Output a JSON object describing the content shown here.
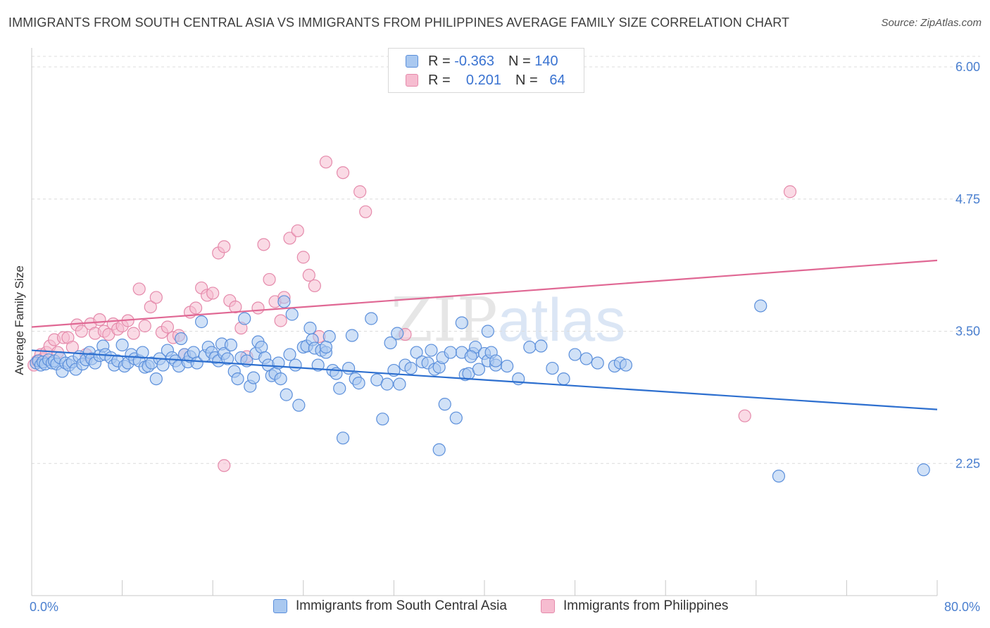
{
  "header": {
    "title": "IMMIGRANTS FROM SOUTH CENTRAL ASIA VS IMMIGRANTS FROM PHILIPPINES AVERAGE FAMILY SIZE CORRELATION CHART",
    "source": "Source: ZipAtlas.com"
  },
  "watermark": {
    "zip": "ZIP",
    "atlas": "atlas"
  },
  "legend": {
    "rows": [
      {
        "r_label": "R =",
        "r_value": "-0.363",
        "n_label": "N =",
        "n_value": "140"
      },
      {
        "r_label": "R =",
        "r_value": "0.201",
        "n_label": "N =",
        "n_value": "64"
      }
    ]
  },
  "colors": {
    "blue_fill": "#a9c8f0",
    "blue_stroke": "#5b8fdb",
    "blue_line": "#2d6fcf",
    "pink_fill": "#f6bcd0",
    "pink_stroke": "#e58aab",
    "pink_line": "#e06894",
    "axis_text": "#4a7fcf",
    "grid": "#dcdcdc"
  },
  "chart_data": {
    "type": "scatter",
    "title": "IMMIGRANTS FROM SOUTH CENTRAL ASIA VS IMMIGRANTS FROM PHILIPPINES AVERAGE FAMILY SIZE CORRELATION CHART",
    "xlabel": "",
    "ylabel": "Average Family Size",
    "xlim": [
      0,
      80
    ],
    "ylim": [
      1.0,
      6.1
    ],
    "x_tick_labels": [
      "0.0%",
      "80.0%"
    ],
    "y_ticks": [
      2.25,
      3.5,
      4.75,
      6.0
    ],
    "y_tick_labels": [
      "2.25",
      "3.50",
      "4.75",
      "6.00"
    ],
    "grid": true,
    "legend_position": "bottom",
    "series": [
      {
        "name": "Immigrants from South Central Asia",
        "color": "#5b8fdb",
        "r": -0.363,
        "n": 140,
        "trend": {
          "x": [
            0,
            80
          ],
          "y": [
            3.32,
            2.76
          ]
        },
        "points": [
          [
            0.4,
            3.2
          ],
          [
            0.6,
            3.22
          ],
          [
            0.8,
            3.18
          ],
          [
            1.0,
            3.21
          ],
          [
            1.2,
            3.19
          ],
          [
            1.5,
            3.23
          ],
          [
            1.8,
            3.2
          ],
          [
            2.0,
            3.22
          ],
          [
            2.2,
            3.19
          ],
          [
            2.5,
            3.25
          ],
          [
            2.7,
            3.12
          ],
          [
            3.0,
            3.2
          ],
          [
            3.3,
            3.18
          ],
          [
            3.6,
            3.21
          ],
          [
            3.9,
            3.14
          ],
          [
            4.2,
            3.26
          ],
          [
            4.5,
            3.19
          ],
          [
            4.8,
            3.23
          ],
          [
            5.1,
            3.3
          ],
          [
            5.3,
            3.24
          ],
          [
            5.6,
            3.2
          ],
          [
            6.0,
            3.27
          ],
          [
            6.3,
            3.36
          ],
          [
            6.5,
            3.28
          ],
          [
            7.0,
            3.25
          ],
          [
            7.3,
            3.18
          ],
          [
            7.6,
            3.22
          ],
          [
            8.0,
            3.37
          ],
          [
            8.2,
            3.17
          ],
          [
            8.5,
            3.2
          ],
          [
            8.8,
            3.28
          ],
          [
            9.1,
            3.24
          ],
          [
            9.5,
            3.22
          ],
          [
            9.8,
            3.3
          ],
          [
            10.0,
            3.16
          ],
          [
            10.3,
            3.17
          ],
          [
            10.6,
            3.2
          ],
          [
            11.0,
            3.05
          ],
          [
            11.3,
            3.24
          ],
          [
            11.6,
            3.18
          ],
          [
            12.0,
            3.32
          ],
          [
            12.4,
            3.25
          ],
          [
            12.7,
            3.22
          ],
          [
            13.0,
            3.17
          ],
          [
            13.2,
            3.43
          ],
          [
            13.5,
            3.28
          ],
          [
            13.8,
            3.21
          ],
          [
            14.0,
            3.26
          ],
          [
            14.3,
            3.3
          ],
          [
            14.6,
            3.2
          ],
          [
            15.0,
            3.59
          ],
          [
            15.3,
            3.27
          ],
          [
            15.6,
            3.35
          ],
          [
            15.9,
            3.3
          ],
          [
            16.2,
            3.25
          ],
          [
            16.5,
            3.22
          ],
          [
            16.8,
            3.38
          ],
          [
            17.0,
            3.29
          ],
          [
            17.3,
            3.24
          ],
          [
            17.6,
            3.37
          ],
          [
            17.9,
            3.12
          ],
          [
            18.2,
            3.05
          ],
          [
            18.5,
            3.25
          ],
          [
            18.8,
            3.62
          ],
          [
            19.0,
            3.22
          ],
          [
            19.3,
            2.98
          ],
          [
            19.6,
            3.06
          ],
          [
            19.8,
            3.29
          ],
          [
            20.0,
            3.4
          ],
          [
            20.3,
            3.35
          ],
          [
            20.6,
            3.25
          ],
          [
            20.9,
            3.18
          ],
          [
            21.2,
            3.08
          ],
          [
            21.5,
            3.1
          ],
          [
            21.8,
            3.2
          ],
          [
            22.0,
            3.05
          ],
          [
            22.3,
            3.78
          ],
          [
            22.5,
            2.9
          ],
          [
            22.8,
            3.28
          ],
          [
            23.0,
            3.66
          ],
          [
            23.3,
            3.18
          ],
          [
            23.6,
            2.8
          ],
          [
            24.0,
            3.35
          ],
          [
            24.3,
            3.36
          ],
          [
            24.6,
            3.53
          ],
          [
            24.8,
            3.42
          ],
          [
            25.0,
            3.34
          ],
          [
            25.3,
            3.18
          ],
          [
            25.6,
            3.32
          ],
          [
            26.0,
            3.3
          ],
          [
            26.3,
            3.45
          ],
          [
            26.6,
            3.13
          ],
          [
            26.9,
            3.1
          ],
          [
            27.2,
            2.96
          ],
          [
            27.5,
            2.49
          ],
          [
            28.0,
            3.15
          ],
          [
            28.3,
            3.46
          ],
          [
            28.6,
            3.05
          ],
          [
            28.9,
            3.01
          ],
          [
            30.0,
            3.62
          ],
          [
            30.5,
            3.04
          ],
          [
            31.0,
            2.67
          ],
          [
            31.4,
            3.0
          ],
          [
            31.7,
            3.39
          ],
          [
            32.0,
            3.13
          ],
          [
            32.3,
            3.48
          ],
          [
            33.0,
            3.18
          ],
          [
            33.5,
            3.15
          ],
          [
            34.0,
            3.3
          ],
          [
            34.5,
            3.21
          ],
          [
            35.0,
            3.2
          ],
          [
            35.3,
            3.32
          ],
          [
            35.6,
            3.14
          ],
          [
            36.0,
            3.16
          ],
          [
            36.3,
            3.25
          ],
          [
            37.5,
            2.68
          ],
          [
            38.0,
            3.3
          ],
          [
            38.3,
            3.09
          ],
          [
            38.6,
            3.1
          ],
          [
            39.0,
            3.29
          ],
          [
            38.0,
            3.58
          ],
          [
            39.2,
            3.35
          ],
          [
            38.8,
            3.26
          ],
          [
            40.0,
            3.29
          ],
          [
            40.3,
            3.22
          ],
          [
            40.6,
            3.3
          ],
          [
            41.0,
            3.18
          ],
          [
            42.0,
            3.17
          ],
          [
            43.0,
            3.05
          ],
          [
            44.0,
            3.35
          ],
          [
            45.0,
            3.36
          ],
          [
            46.0,
            3.15
          ],
          [
            47.0,
            3.05
          ],
          [
            48.0,
            3.28
          ],
          [
            49.0,
            3.24
          ],
          [
            50.0,
            3.2
          ],
          [
            51.5,
            3.17
          ],
          [
            52.0,
            3.2
          ],
          [
            52.5,
            3.18
          ],
          [
            64.4,
            3.74
          ],
          [
            36.0,
            2.38
          ],
          [
            40.3,
            3.5
          ],
          [
            36.5,
            2.81
          ],
          [
            66.0,
            2.13
          ],
          [
            78.8,
            2.19
          ],
          [
            41.0,
            3.22
          ],
          [
            39.5,
            3.14
          ],
          [
            26.0,
            3.35
          ],
          [
            32.5,
            3.0
          ],
          [
            37.0,
            3.3
          ]
        ]
      },
      {
        "name": "Immigrants from Philippines",
        "color": "#e58aab",
        "r": 0.201,
        "n": 64,
        "trend": {
          "x": [
            0,
            80
          ],
          "y": [
            3.54,
            4.17
          ]
        },
        "points": [
          [
            0.2,
            3.18
          ],
          [
            0.5,
            3.22
          ],
          [
            0.8,
            3.28
          ],
          [
            1.0,
            3.24
          ],
          [
            1.3,
            3.3
          ],
          [
            1.6,
            3.36
          ],
          [
            2.0,
            3.42
          ],
          [
            2.3,
            3.3
          ],
          [
            2.8,
            3.44
          ],
          [
            3.2,
            3.44
          ],
          [
            3.6,
            3.35
          ],
          [
            4.0,
            3.56
          ],
          [
            4.4,
            3.5
          ],
          [
            4.8,
            3.28
          ],
          [
            5.2,
            3.57
          ],
          [
            5.6,
            3.48
          ],
          [
            6.0,
            3.61
          ],
          [
            6.4,
            3.5
          ],
          [
            6.8,
            3.47
          ],
          [
            7.2,
            3.57
          ],
          [
            7.6,
            3.52
          ],
          [
            8.0,
            3.55
          ],
          [
            8.5,
            3.6
          ],
          [
            9.0,
            3.48
          ],
          [
            9.5,
            3.9
          ],
          [
            10.0,
            3.55
          ],
          [
            10.5,
            3.73
          ],
          [
            11.0,
            3.82
          ],
          [
            11.5,
            3.49
          ],
          [
            12.0,
            3.54
          ],
          [
            12.5,
            3.44
          ],
          [
            13.0,
            3.46
          ],
          [
            13.5,
            3.28
          ],
          [
            14.0,
            3.68
          ],
          [
            14.5,
            3.72
          ],
          [
            15.0,
            3.91
          ],
          [
            15.5,
            3.84
          ],
          [
            16.0,
            3.86
          ],
          [
            16.5,
            4.24
          ],
          [
            17.0,
            4.3
          ],
          [
            17.5,
            3.79
          ],
          [
            18.0,
            3.73
          ],
          [
            18.5,
            3.53
          ],
          [
            19.0,
            3.26
          ],
          [
            20.0,
            3.72
          ],
          [
            20.5,
            4.32
          ],
          [
            21.0,
            3.99
          ],
          [
            21.5,
            3.78
          ],
          [
            22.0,
            3.6
          ],
          [
            22.3,
            3.82
          ],
          [
            22.8,
            4.38
          ],
          [
            23.5,
            4.45
          ],
          [
            24.0,
            4.2
          ],
          [
            24.5,
            4.03
          ],
          [
            25.0,
            3.93
          ],
          [
            25.4,
            3.45
          ],
          [
            26.0,
            5.1
          ],
          [
            27.5,
            5.0
          ],
          [
            29.0,
            4.82
          ],
          [
            29.5,
            4.63
          ],
          [
            33.0,
            3.47
          ],
          [
            17.0,
            2.23
          ],
          [
            63.0,
            2.7
          ],
          [
            67.0,
            4.82
          ]
        ]
      }
    ]
  },
  "bottom_legend": {
    "items": [
      {
        "label": "Immigrants from South Central Asia"
      },
      {
        "label": "Immigrants from Philippines"
      }
    ]
  }
}
